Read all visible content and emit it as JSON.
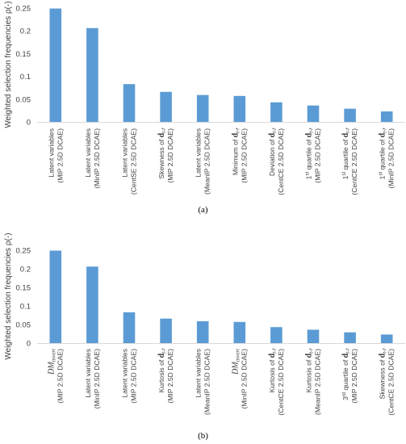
{
  "chart_data": [
    {
      "type": "bar",
      "panel_label": "(a)",
      "ylabel": "Weighted selection frequencies ρ(-)",
      "ylim": [
        0,
        0.25
      ],
      "yticks": [
        "0",
        "0.05",
        "0.1",
        "0.15",
        "0.2",
        "0.25"
      ],
      "color": "#5b9bd5",
      "categories": [
        [
          "Latent variables",
          "(MIP 2.5D DCAE)"
        ],
        [
          "Latent variables",
          "(MinIP 2.5D DCAE)"
        ],
        [
          "Latent variables",
          "(CentSE 2.5D DCAE)"
        ],
        [
          "Skewness of d_{t-f}",
          "(MIP 2.5D DCAE)"
        ],
        [
          "Latent variables",
          "(MeanIP 2.5D DCAE)"
        ],
        [
          "Minimum of d_{t-f}",
          "(MIP 2.5D DCAE)"
        ],
        [
          "Deviation of d_{t-f}",
          "(CentCE 2.5D DCAE)"
        ],
        [
          "1st quartile of d_{t-f}",
          "(MIP 2.5D DCAE)"
        ],
        [
          "1st quartile of d_{t-f}",
          "(CentCE 2.5D DCAE)"
        ],
        [
          "1st quartile of d_{t-f}",
          "(MinIP 2.5D DCAE)"
        ]
      ],
      "values": [
        0.249,
        0.206,
        0.083,
        0.066,
        0.059,
        0.057,
        0.043,
        0.036,
        0.029,
        0.023
      ]
    },
    {
      "type": "bar",
      "panel_label": "(b)",
      "ylabel": "Weighted selection frequencies ρ(-)",
      "ylim": [
        0,
        0.25
      ],
      "yticks": [
        "0",
        "0.05",
        "0.1",
        "0.15",
        "0.2",
        "0.25"
      ],
      "color": "#5b9bd5",
      "categories": [
        [
          "DM_{invert}",
          "(MIP 2.5D DCAE)"
        ],
        [
          "Latent variables",
          "(MinIP 2.5D DCAE)"
        ],
        [
          "Latent variables",
          "(MIP 2.5D DCAE)"
        ],
        [
          "Kurtosis of d_{t-f}",
          "(MIP 2.5D DCAE)"
        ],
        [
          "Latent variables",
          "(MeanIP 2.5D DCAE)"
        ],
        [
          "DM_{invert}",
          "(MinIP 2.5D DCAE)"
        ],
        [
          "Kurtosis of d_{t-f}",
          "(CentCE 2.5D DCAE)"
        ],
        [
          "Kurtosis of d_{t-f}",
          "(MeanIP 2.5D DCAE)"
        ],
        [
          "3rd quartile of d_{t-f}",
          "(MIP 2.5D DCAE)"
        ],
        [
          "Skewness of d_{t-f}",
          "(CentCE 2.5D DCAE)"
        ]
      ],
      "values": [
        0.249,
        0.206,
        0.083,
        0.066,
        0.059,
        0.057,
        0.043,
        0.036,
        0.029,
        0.023
      ]
    }
  ]
}
